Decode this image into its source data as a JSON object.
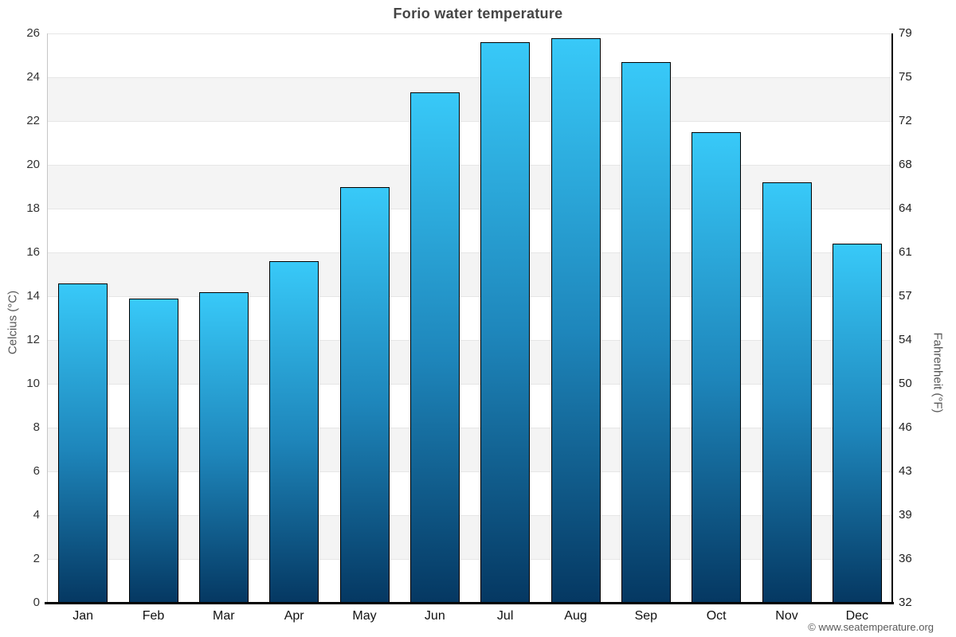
{
  "chart_data": {
    "type": "bar",
    "title": "Forio water temperature",
    "categories": [
      "Jan",
      "Feb",
      "Mar",
      "Apr",
      "May",
      "Jun",
      "Jul",
      "Aug",
      "Sep",
      "Oct",
      "Nov",
      "Dec"
    ],
    "values": [
      14.6,
      13.9,
      14.2,
      15.6,
      19.0,
      23.3,
      25.6,
      25.8,
      24.7,
      21.5,
      19.2,
      16.4
    ],
    "unit": "°C",
    "ylabel": "Celcius (°C)",
    "ylabel_secondary": "Fahrenheit (°F)",
    "ylim": [
      0,
      26
    ],
    "yticks": [
      0,
      2,
      4,
      6,
      8,
      10,
      12,
      14,
      16,
      18,
      20,
      22,
      24,
      26
    ],
    "yticks_right_labels": [
      "32",
      "36",
      "39",
      "43",
      "46",
      "50",
      "54",
      "57",
      "61",
      "64",
      "68",
      "72",
      "75",
      "79"
    ],
    "grid": true,
    "alternate_bands": true,
    "legend": "none",
    "colors": {
      "bar_gradient_top": "#38c9f8",
      "bar_gradient_mid": "#1e86bb",
      "bar_gradient_bottom": "#053862",
      "bar_border": "#000000",
      "band": "#f4f4f4",
      "gridline": "#e6e6e6",
      "title_text": "#454545",
      "tick_text": "#333333",
      "month_text": "#111111",
      "axis_title_text": "#555555"
    },
    "credits": "© www.seatemperature.org"
  }
}
